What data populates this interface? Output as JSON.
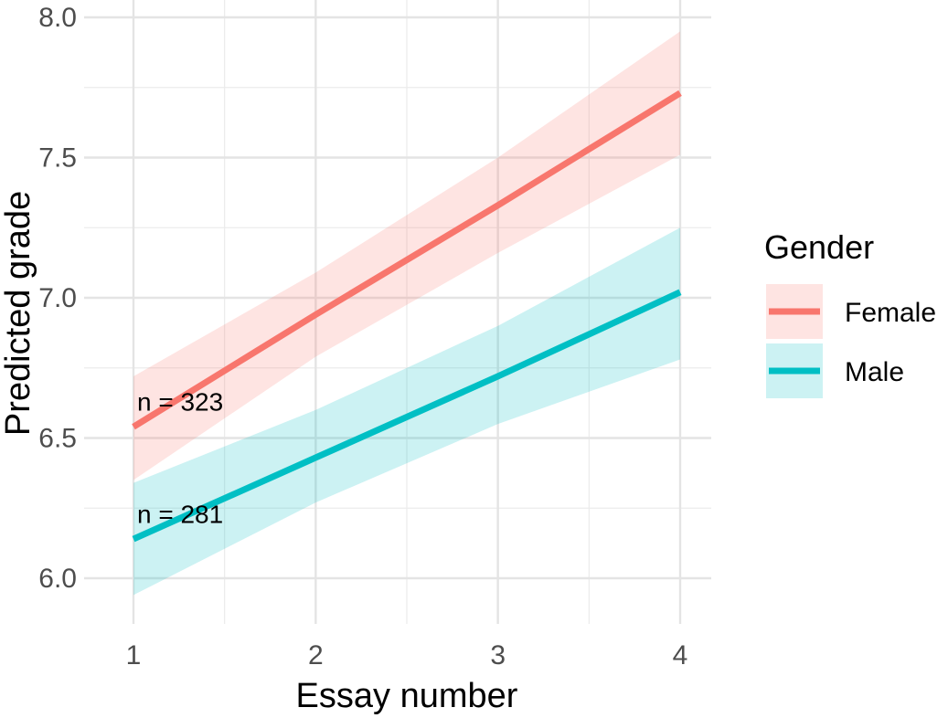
{
  "chart_data": {
    "type": "line",
    "title": "",
    "xlabel": "Essay number",
    "ylabel": "Predicted grade",
    "x": [
      1,
      2,
      3,
      4
    ],
    "x_ticks": [
      "1",
      "2",
      "3",
      "4"
    ],
    "y_ticks": [
      "6.0",
      "6.5",
      "7.0",
      "7.5",
      "8.0"
    ],
    "xlim": [
      1,
      4
    ],
    "ylim": [
      5.87,
      8.0
    ],
    "grid": true,
    "legend": {
      "title": "Gender",
      "placement": "right"
    },
    "series": [
      {
        "name": "Female",
        "color": "#F8766D",
        "values": [
          6.54,
          6.94,
          7.33,
          7.73
        ],
        "lower": [
          6.35,
          6.79,
          7.16,
          7.51
        ],
        "upper": [
          6.72,
          7.09,
          7.5,
          7.95
        ]
      },
      {
        "name": "Male",
        "color": "#00BFC4",
        "values": [
          6.14,
          6.43,
          6.72,
          7.02
        ],
        "lower": [
          5.94,
          6.27,
          6.55,
          6.78
        ],
        "upper": [
          6.34,
          6.6,
          6.9,
          7.25
        ]
      }
    ],
    "annotations": [
      {
        "text": "n = 323",
        "x": 1,
        "y": 6.63
      },
      {
        "text": "n = 281",
        "x": 1,
        "y": 6.23
      }
    ]
  }
}
